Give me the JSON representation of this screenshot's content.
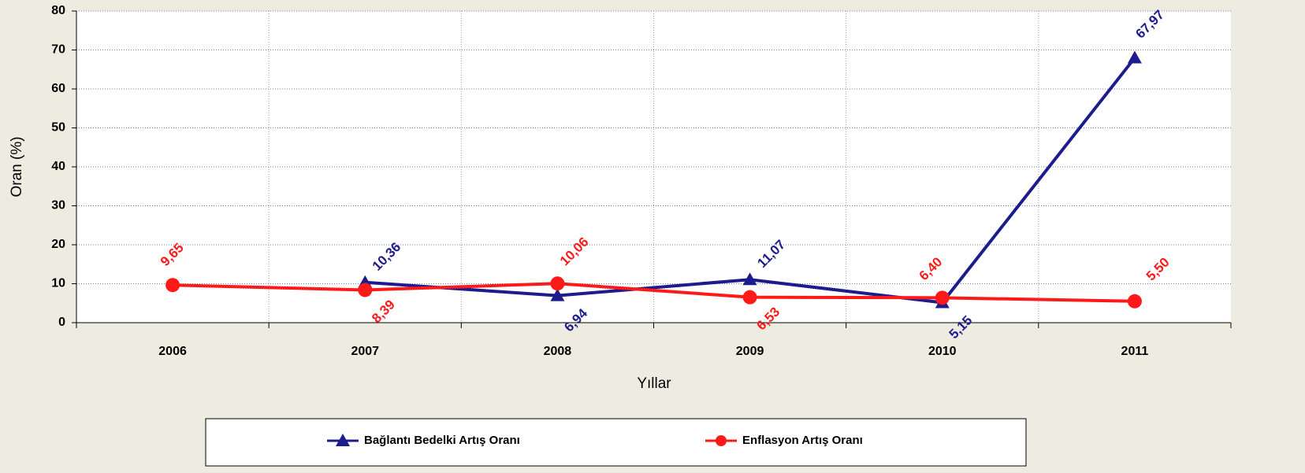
{
  "chart_data": {
    "type": "line",
    "y_label": "Oran (%)",
    "x_label": "Yıllar",
    "categories": [
      "2006",
      "2007",
      "2008",
      "2009",
      "2010",
      "2011"
    ],
    "series": [
      {
        "name": "Bağlantı Bedelki Artış Oranı",
        "color": "#1c1c8c",
        "marker": "triangle",
        "values": [
          null,
          10.36,
          6.94,
          11.07,
          5.15,
          67.97
        ],
        "value_labels": [
          null,
          "10,36",
          "6,94",
          "11,07",
          "5,15",
          "67,97"
        ]
      },
      {
        "name": "Enflasyon Artış Oranı",
        "color": "#ff1a1a",
        "marker": "circle",
        "values": [
          9.65,
          8.39,
          10.06,
          6.53,
          6.4,
          5.5
        ],
        "value_labels": [
          "9,65",
          "8,39",
          "10,06",
          "6,53",
          "6,40",
          "5,50"
        ]
      }
    ],
    "ylim": [
      0,
      80
    ],
    "yticks": [
      0,
      10,
      20,
      30,
      40,
      50,
      60,
      70,
      80
    ],
    "grid": true
  }
}
